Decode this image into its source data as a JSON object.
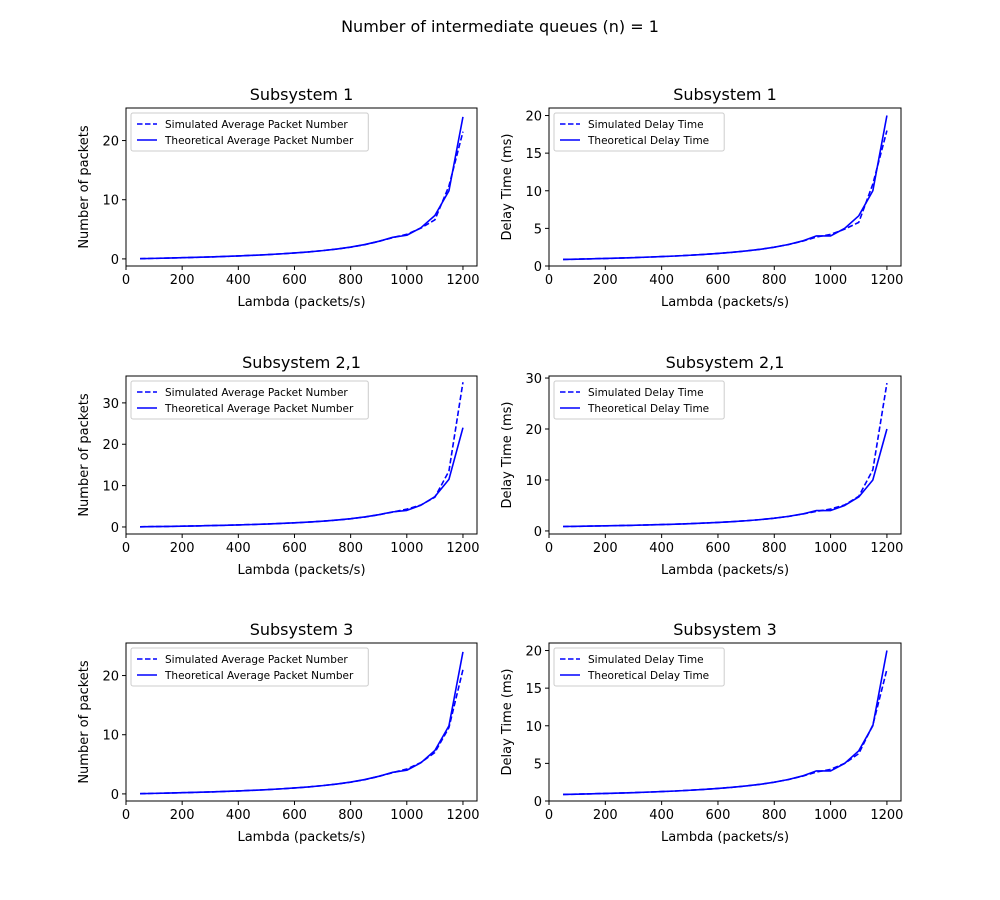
{
  "figure": {
    "title": "Number of intermediate queues (n) = 1"
  },
  "colors": {
    "line": "#0000ff",
    "axis": "#000000",
    "legend_border": "#cccccc",
    "background": "#ffffff"
  },
  "chart_data": [
    {
      "type": "line",
      "title": "Subsystem 1",
      "xlabel": "Lambda (packets/s)",
      "ylabel": "Number of packets",
      "xlim": [
        0,
        1250
      ],
      "ylim": [
        -1.2,
        25.5
      ],
      "xticks": [
        0,
        200,
        400,
        600,
        800,
        1000,
        1200
      ],
      "yticks": [
        0,
        10,
        20
      ],
      "legend": "top-left",
      "grid": false,
      "x": [
        50,
        100,
        150,
        200,
        250,
        300,
        350,
        400,
        450,
        500,
        550,
        600,
        650,
        700,
        750,
        800,
        850,
        900,
        950,
        1000,
        1050,
        1100,
        1150,
        1200
      ],
      "series": [
        {
          "name": "Simulated Average Packet Number",
          "style": "dashed",
          "values": [
            0.04,
            0.09,
            0.14,
            0.2,
            0.26,
            0.33,
            0.41,
            0.5,
            0.6,
            0.71,
            0.85,
            1.0,
            1.18,
            1.4,
            1.66,
            1.98,
            2.4,
            2.95,
            3.6,
            4.15,
            5.2,
            6.6,
            12.3,
            21.5
          ]
        },
        {
          "name": "Theoretical Average Packet Number",
          "style": "solid",
          "values": [
            0.04,
            0.09,
            0.14,
            0.2,
            0.26,
            0.33,
            0.41,
            0.5,
            0.6,
            0.71,
            0.85,
            1.0,
            1.18,
            1.4,
            1.66,
            2.0,
            2.42,
            2.97,
            3.65,
            4.0,
            5.25,
            7.33,
            11.5,
            24.0
          ]
        }
      ]
    },
    {
      "type": "line",
      "title": "Subsystem 1",
      "xlabel": "Lambda (packets/s)",
      "ylabel": "Delay Time (ms)",
      "xlim": [
        0,
        1250
      ],
      "ylim": [
        0,
        21
      ],
      "xticks": [
        0,
        200,
        400,
        600,
        800,
        1000,
        1200
      ],
      "yticks": [
        0,
        5,
        10,
        15,
        20
      ],
      "legend": "top-left",
      "grid": false,
      "x": [
        50,
        100,
        150,
        200,
        250,
        300,
        350,
        400,
        450,
        500,
        550,
        600,
        650,
        700,
        750,
        800,
        850,
        900,
        950,
        1000,
        1050,
        1100,
        1150,
        1200
      ],
      "series": [
        {
          "name": "Simulated Delay Time",
          "style": "dashed",
          "values": [
            0.87,
            0.91,
            0.96,
            1.0,
            1.05,
            1.11,
            1.18,
            1.25,
            1.33,
            1.43,
            1.54,
            1.67,
            1.82,
            2.0,
            2.22,
            2.5,
            2.85,
            3.3,
            3.85,
            4.2,
            4.9,
            5.8,
            10.9,
            18.0
          ]
        },
        {
          "name": "Theoretical Delay Time",
          "style": "solid",
          "values": [
            0.87,
            0.91,
            0.96,
            1.0,
            1.05,
            1.11,
            1.18,
            1.25,
            1.33,
            1.43,
            1.54,
            1.67,
            1.82,
            2.0,
            2.22,
            2.5,
            2.86,
            3.33,
            4.0,
            4.0,
            5.0,
            6.67,
            10.0,
            20.0
          ]
        }
      ]
    },
    {
      "type": "line",
      "title": "Subsystem 2,1",
      "xlabel": "Lambda (packets/s)",
      "ylabel": "Number of packets",
      "xlim": [
        0,
        1250
      ],
      "ylim": [
        -1.7,
        36.5
      ],
      "xticks": [
        0,
        200,
        400,
        600,
        800,
        1000,
        1200
      ],
      "yticks": [
        0,
        10,
        20,
        30
      ],
      "legend": "top-left",
      "grid": false,
      "x": [
        50,
        100,
        150,
        200,
        250,
        300,
        350,
        400,
        450,
        500,
        550,
        600,
        650,
        700,
        750,
        800,
        850,
        900,
        950,
        1000,
        1050,
        1100,
        1150,
        1200
      ],
      "series": [
        {
          "name": "Simulated Average Packet Number",
          "style": "dashed",
          "values": [
            0.04,
            0.09,
            0.14,
            0.2,
            0.26,
            0.33,
            0.41,
            0.5,
            0.6,
            0.71,
            0.85,
            1.0,
            1.18,
            1.4,
            1.66,
            1.98,
            2.4,
            2.95,
            3.6,
            4.3,
            5.3,
            7.2,
            13.5,
            35.0
          ]
        },
        {
          "name": "Theoretical Average Packet Number",
          "style": "solid",
          "values": [
            0.04,
            0.09,
            0.14,
            0.2,
            0.26,
            0.33,
            0.41,
            0.5,
            0.6,
            0.71,
            0.85,
            1.0,
            1.18,
            1.4,
            1.66,
            2.0,
            2.42,
            2.97,
            3.65,
            4.0,
            5.25,
            7.33,
            11.5,
            24.0
          ]
        }
      ]
    },
    {
      "type": "line",
      "title": "Subsystem 2,1",
      "xlabel": "Lambda (packets/s)",
      "ylabel": "Delay Time (ms)",
      "xlim": [
        0,
        1250
      ],
      "ylim": [
        -0.6,
        30.4
      ],
      "xticks": [
        0,
        200,
        400,
        600,
        800,
        1000,
        1200
      ],
      "yticks": [
        0,
        10,
        20,
        30
      ],
      "legend": "top-left",
      "grid": false,
      "x": [
        50,
        100,
        150,
        200,
        250,
        300,
        350,
        400,
        450,
        500,
        550,
        600,
        650,
        700,
        750,
        800,
        850,
        900,
        950,
        1000,
        1050,
        1100,
        1150,
        1200
      ],
      "series": [
        {
          "name": "Simulated Delay Time",
          "style": "dashed",
          "values": [
            0.87,
            0.91,
            0.96,
            1.0,
            1.05,
            1.11,
            1.18,
            1.25,
            1.33,
            1.43,
            1.54,
            1.67,
            1.82,
            2.0,
            2.22,
            2.5,
            2.85,
            3.3,
            3.85,
            4.3,
            5.1,
            6.8,
            12.0,
            29.0
          ]
        },
        {
          "name": "Theoretical Delay Time",
          "style": "solid",
          "values": [
            0.87,
            0.91,
            0.96,
            1.0,
            1.05,
            1.11,
            1.18,
            1.25,
            1.33,
            1.43,
            1.54,
            1.67,
            1.82,
            2.0,
            2.22,
            2.5,
            2.86,
            3.33,
            4.0,
            4.0,
            5.0,
            6.67,
            10.0,
            20.0
          ]
        }
      ]
    },
    {
      "type": "line",
      "title": "Subsystem 3",
      "xlabel": "Lambda (packets/s)",
      "ylabel": "Number of packets",
      "xlim": [
        0,
        1250
      ],
      "ylim": [
        -1.2,
        25.5
      ],
      "xticks": [
        0,
        200,
        400,
        600,
        800,
        1000,
        1200
      ],
      "yticks": [
        0,
        10,
        20
      ],
      "legend": "top-left",
      "grid": false,
      "x": [
        50,
        100,
        150,
        200,
        250,
        300,
        350,
        400,
        450,
        500,
        550,
        600,
        650,
        700,
        750,
        800,
        850,
        900,
        950,
        1000,
        1050,
        1100,
        1150,
        1200
      ],
      "series": [
        {
          "name": "Simulated Average Packet Number",
          "style": "dashed",
          "values": [
            0.04,
            0.09,
            0.14,
            0.2,
            0.26,
            0.33,
            0.41,
            0.5,
            0.6,
            0.71,
            0.85,
            1.0,
            1.18,
            1.4,
            1.66,
            1.98,
            2.4,
            2.95,
            3.6,
            4.2,
            5.3,
            7.0,
            11.2,
            21.0
          ]
        },
        {
          "name": "Theoretical Average Packet Number",
          "style": "solid",
          "values": [
            0.04,
            0.09,
            0.14,
            0.2,
            0.26,
            0.33,
            0.41,
            0.5,
            0.6,
            0.71,
            0.85,
            1.0,
            1.18,
            1.4,
            1.66,
            2.0,
            2.42,
            2.97,
            3.65,
            4.0,
            5.25,
            7.33,
            11.5,
            24.0
          ]
        }
      ]
    },
    {
      "type": "line",
      "title": "Subsystem 3",
      "xlabel": "Lambda (packets/s)",
      "ylabel": "Delay Time (ms)",
      "xlim": [
        0,
        1250
      ],
      "ylim": [
        0,
        21
      ],
      "xticks": [
        0,
        200,
        400,
        600,
        800,
        1000,
        1200
      ],
      "yticks": [
        0,
        5,
        10,
        15,
        20
      ],
      "legend": "top-left",
      "grid": false,
      "x": [
        50,
        100,
        150,
        200,
        250,
        300,
        350,
        400,
        450,
        500,
        550,
        600,
        650,
        700,
        750,
        800,
        850,
        900,
        950,
        1000,
        1050,
        1100,
        1150,
        1200
      ],
      "series": [
        {
          "name": "Simulated Delay Time",
          "style": "dashed",
          "values": [
            0.87,
            0.91,
            0.96,
            1.0,
            1.05,
            1.11,
            1.18,
            1.25,
            1.33,
            1.43,
            1.54,
            1.67,
            1.82,
            2.0,
            2.22,
            2.5,
            2.85,
            3.3,
            3.85,
            4.2,
            5.0,
            6.3,
            10.1,
            17.5
          ]
        },
        {
          "name": "Theoretical Delay Time",
          "style": "solid",
          "values": [
            0.87,
            0.91,
            0.96,
            1.0,
            1.05,
            1.11,
            1.18,
            1.25,
            1.33,
            1.43,
            1.54,
            1.67,
            1.82,
            2.0,
            2.22,
            2.5,
            2.86,
            3.33,
            4.0,
            4.0,
            5.0,
            6.67,
            10.0,
            20.0
          ]
        }
      ]
    }
  ]
}
